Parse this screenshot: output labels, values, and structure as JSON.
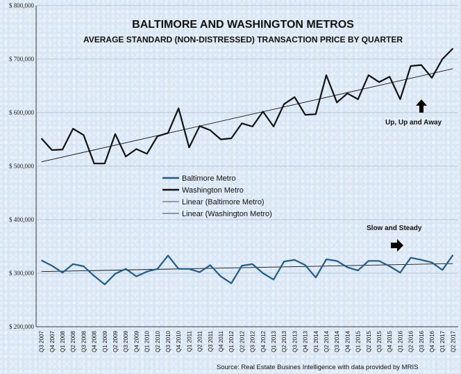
{
  "chart_data": {
    "type": "line",
    "title": "BALTIMORE AND WASHINGTON METROS",
    "subtitle": "AVERAGE STANDARD (NON-DISTRESSED) TRANSACTION PRICE BY QUARTER",
    "source": "Source: Real Estate Busines Intelligence with data provided by MRIS",
    "ylim": [
      200000,
      800000
    ],
    "yticks": [
      200000,
      300000,
      400000,
      500000,
      600000,
      700000,
      800000
    ],
    "ytick_labels": [
      "$ 200,000",
      "$ 300,000",
      "$ 400,000",
      "$ 500,000",
      "$ 600,000",
      "$ 700,000",
      "$ 800,000"
    ],
    "categories": [
      "Q3 2007",
      "Q4 2007",
      "Q1 2008",
      "Q2 2008",
      "Q3 2008",
      "Q4 2008",
      "Q1 2009",
      "Q2 2009",
      "Q3 2009",
      "Q4 2009",
      "Q1 2010",
      "Q2 2010",
      "Q3 2010",
      "Q4 2010",
      "Q1 2011",
      "Q2 2011",
      "Q3 2011",
      "Q4 2011",
      "Q1 2012",
      "Q2 2012",
      "Q3 2012",
      "Q4 2012",
      "Q1 2013",
      "Q2 2013",
      "Q3 2013",
      "Q4 2013",
      "Q1 2014",
      "Q2 2014",
      "Q3 2014",
      "Q4 2014",
      "Q1 2015",
      "Q2 2015",
      "Q3 2015",
      "Q4 2015",
      "Q1 2016",
      "Q2 2016",
      "Q3 2016",
      "Q4 2016",
      "Q1 2017",
      "Q2 2017"
    ],
    "series": [
      {
        "name": "Baltimore Metro",
        "color": "#1f5a8c",
        "values": [
          324000,
          314000,
          301000,
          317000,
          313000,
          295000,
          279000,
          299000,
          308000,
          294000,
          303000,
          308000,
          333000,
          308000,
          308000,
          302000,
          315000,
          294000,
          281000,
          314000,
          317000,
          300000,
          288000,
          322000,
          325000,
          315000,
          292000,
          326000,
          323000,
          311000,
          305000,
          323000,
          323000,
          313000,
          301000,
          329000,
          325000,
          320000,
          306000,
          334000
        ]
      },
      {
        "name": "Washington Metro",
        "color": "#111111",
        "values": [
          552000,
          530000,
          531000,
          570000,
          558000,
          505000,
          505000,
          560000,
          518000,
          532000,
          523000,
          556000,
          562000,
          608000,
          535000,
          575000,
          567000,
          550000,
          552000,
          580000,
          574000,
          602000,
          574000,
          616000,
          629000,
          596000,
          597000,
          670000,
          619000,
          636000,
          625000,
          670000,
          657000,
          667000,
          625000,
          687000,
          689000,
          665000,
          700000,
          720000
        ]
      },
      {
        "name": "Linear (Baltimore Metro)",
        "color": "#111111",
        "trend": [
          303000,
          318000
        ]
      },
      {
        "name": "Linear (Washington Metro)",
        "color": "#111111",
        "trend": [
          508000,
          682000
        ]
      }
    ],
    "legend_placement": "center-left",
    "annotations": [
      {
        "text": "Up, Up and Away",
        "icon": "arrow-up-icon"
      },
      {
        "text": "Slow and Steady",
        "icon": "arrow-right-icon"
      }
    ],
    "grid": {
      "horizontal": true,
      "vertical": false
    }
  }
}
